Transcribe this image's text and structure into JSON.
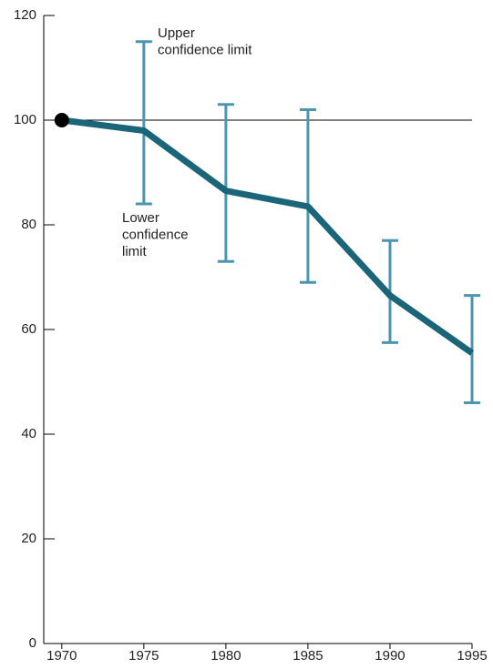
{
  "chart_data": {
    "type": "line",
    "x": [
      1970,
      1975,
      1980,
      1985,
      1990,
      1995
    ],
    "series": [
      {
        "color": "#1b6579",
        "values": [
          100,
          98,
          86.5,
          83.5,
          66.5,
          55.5
        ],
        "lower": [
          null,
          84,
          73,
          69,
          57.5,
          46
        ],
        "upper": [
          null,
          115,
          103,
          102,
          77,
          66.5
        ],
        "error_color": "#4b95b1"
      }
    ],
    "start_marker_color": "#000000",
    "reference_line": 100,
    "xlim": [
      1968.9,
      1995
    ],
    "xticks": [
      1970,
      1975,
      1980,
      1985,
      1990,
      1995
    ],
    "ylim": [
      0,
      120
    ],
    "yticks": [
      0,
      20,
      40,
      60,
      80,
      100,
      120
    ],
    "annotations": [
      [
        "Upper",
        "confidence limit"
      ],
      [
        "Lower",
        "confidence",
        "limit"
      ]
    ]
  }
}
